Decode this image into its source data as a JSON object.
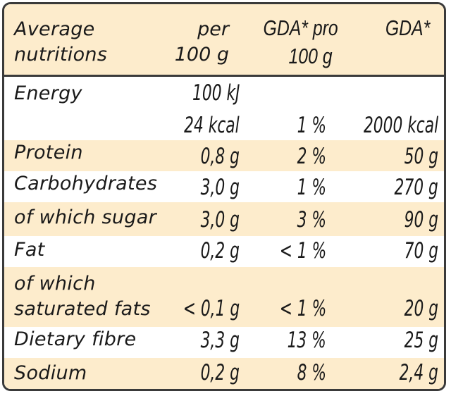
{
  "header": {
    "label_line1": "Average",
    "label_line2": "nutritions",
    "col1_line1": "per",
    "col1_line2": "100 g",
    "col2_line1": "GDA* pro",
    "col2_line2": "100 g",
    "col3_line1": "GDA*"
  },
  "energy": {
    "label": "Energy",
    "kj": "100 kJ",
    "kcal": "24 kcal",
    "pct": "1 %",
    "gda": "2000 kcal"
  },
  "rows": [
    {
      "label": "Protein",
      "per100": "0,8 g",
      "pct": "2 %",
      "gda": "50 g"
    },
    {
      "label": "Carbohydrates",
      "per100": "3,0 g",
      "pct": "1 %",
      "gda": "270 g"
    },
    {
      "label": "of which sugar",
      "per100": "3,0 g",
      "pct": "3 %",
      "gda": "90 g"
    },
    {
      "label": "Fat",
      "per100": "0,2 g",
      "pct": "< 1 %",
      "gda": "70 g"
    }
  ],
  "satfat": {
    "label_line1": "of which",
    "label_line2": "saturated fats",
    "per100": "< 0,1 g",
    "pct": "< 1 %",
    "gda": "20 g"
  },
  "rows2": [
    {
      "label": "Dietary fibre",
      "per100": "3,3 g",
      "pct": "13 %",
      "gda": "25 g"
    },
    {
      "label": "Sodium",
      "per100": "0,2 g",
      "pct": "8 %",
      "gda": "2,4 g"
    }
  ],
  "colors": {
    "band": "#fdeccc",
    "border": "#3a3a3a",
    "text": "#1a1a1a"
  }
}
